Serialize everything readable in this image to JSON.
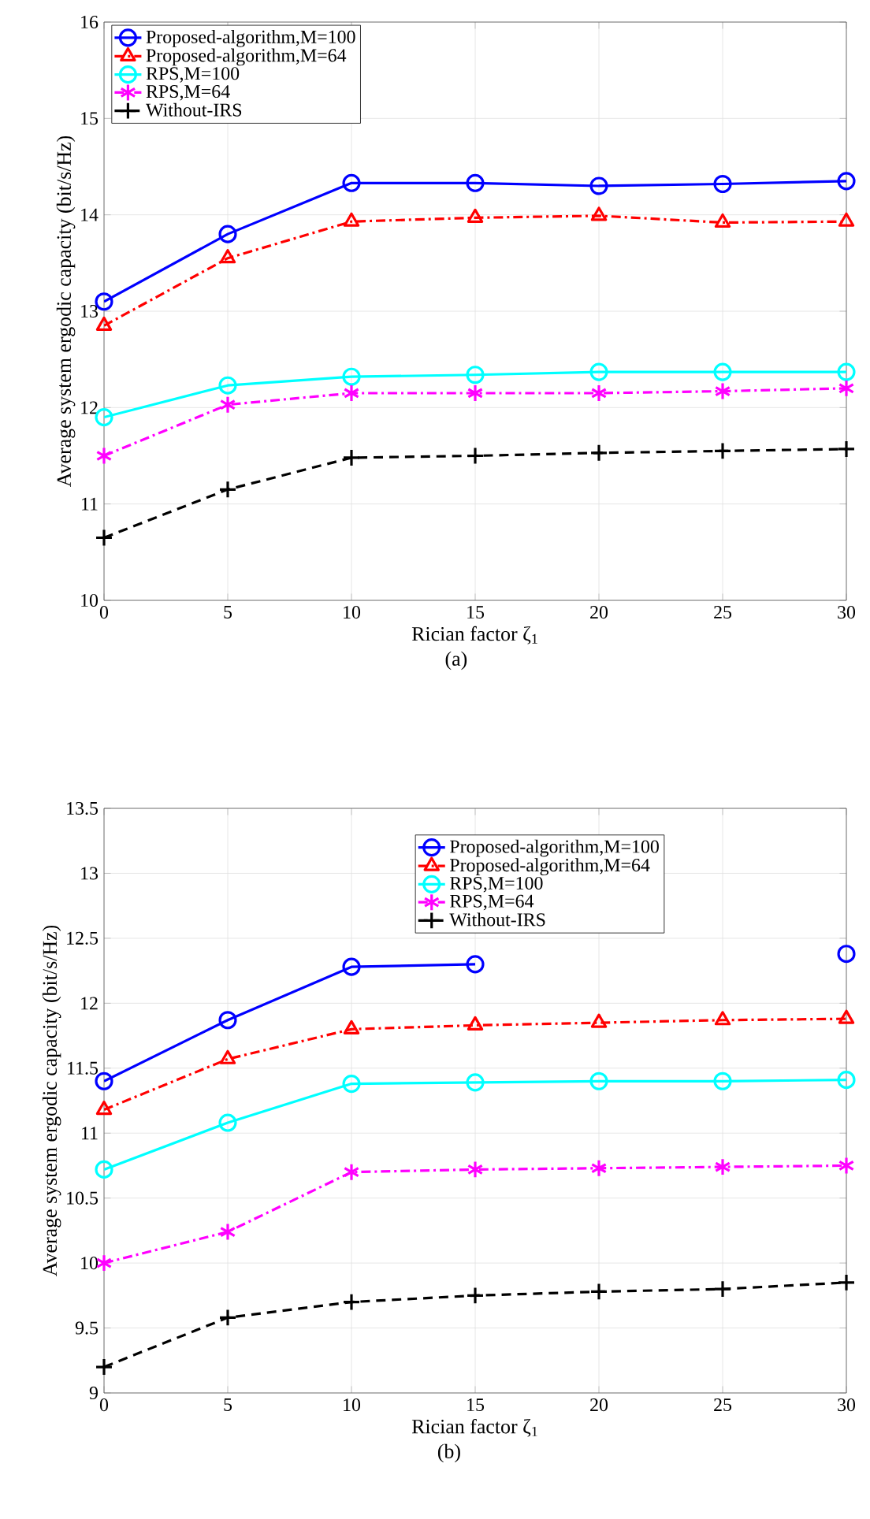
{
  "chart_data": [
    {
      "type": "line",
      "xlabel": "Rician factor ζ$_{1}$",
      "ylabel": "Average system ergodic capacity (bit/s/Hz)",
      "annotations": [
        "(a)"
      ],
      "x": [
        0,
        5,
        10,
        15,
        20,
        25,
        30
      ],
      "xlim": [
        0,
        30
      ],
      "xticks": [
        0,
        5,
        10,
        15,
        20,
        25,
        30
      ],
      "ylim": [
        10,
        16
      ],
      "yticks": [
        10,
        11,
        12,
        13,
        14,
        15,
        16
      ],
      "grid": true,
      "legend": "top left",
      "series": [
        {
          "name": "Proposed-algorithm,M=100",
          "color": "#0000ff",
          "marker": "circle",
          "line_style": "solid",
          "values": [
            13.1,
            13.8,
            14.33,
            14.33,
            14.3,
            14.32,
            14.35
          ]
        },
        {
          "name": "Proposed-algorithm,M=64",
          "color": "#ff0000",
          "marker": "triangle",
          "line_style": "dashdot",
          "values": [
            12.85,
            13.55,
            13.93,
            13.97,
            13.99,
            13.92,
            13.93
          ]
        },
        {
          "name": "RPS,M=100",
          "color": "#00ffff",
          "marker": "circle",
          "line_style": "solid",
          "values": [
            11.9,
            12.23,
            12.32,
            12.34,
            12.37,
            12.37,
            12.37
          ]
        },
        {
          "name": "RPS,M=64",
          "color": "#ff00ff",
          "marker": "cross",
          "line_style": "dashdot",
          "values": [
            11.5,
            12.03,
            12.15,
            12.15,
            12.15,
            12.17,
            12.2
          ]
        },
        {
          "name": "Without-IRS",
          "color": "#000000",
          "marker": "cross",
          "line_style": "dashed",
          "values": [
            10.65,
            11.15,
            11.48,
            11.5,
            11.53,
            11.55,
            11.57
          ]
        }
      ]
    },
    {
      "type": "line",
      "xlabel": "Rician factor ζ$_{1}$",
      "ylabel": "Average system ergodic capacity (bit/s/Hz)",
      "annotations": [
        "(b)"
      ],
      "x": [
        0,
        5,
        10,
        15,
        20,
        25,
        30
      ],
      "xlim": [
        0,
        30
      ],
      "xticks": [
        0,
        5,
        10,
        15,
        20,
        25,
        30
      ],
      "ylim": [
        9,
        13.5
      ],
      "yticks": [
        9,
        9.5,
        10,
        10.5,
        11,
        11.5,
        12,
        12.5,
        13,
        13.5
      ],
      "grid": true,
      "legend": "top right",
      "series": [
        {
          "name": "Proposed-algorithm,M=100",
          "color": "#0000ff",
          "marker": "circle",
          "line_style": "solid",
          "values": [
            11.4,
            11.87,
            12.28,
            12.3,
            null,
            null,
            12.38
          ]
        },
        {
          "name": "Proposed-algorithm,M=64",
          "color": "#ff0000",
          "marker": "triangle",
          "line_style": "dashdot",
          "values": [
            11.18,
            11.57,
            11.8,
            11.83,
            11.85,
            11.87,
            11.88
          ]
        },
        {
          "name": "RPS,M=100",
          "color": "#00ffff",
          "marker": "circle",
          "line_style": "solid",
          "values": [
            10.72,
            11.08,
            11.38,
            11.39,
            11.4,
            11.4,
            11.41
          ]
        },
        {
          "name": "RPS,M=64",
          "color": "#ff00ff",
          "marker": "cross",
          "line_style": "dashdot",
          "values": [
            10.0,
            10.24,
            10.7,
            10.72,
            10.73,
            10.74,
            10.75
          ]
        },
        {
          "name": "Without-IRS",
          "color": "#000000",
          "marker": "cross",
          "line_style": "dashed",
          "values": [
            9.2,
            9.58,
            9.7,
            9.75,
            9.78,
            9.8,
            9.85
          ]
        }
      ]
    }
  ]
}
